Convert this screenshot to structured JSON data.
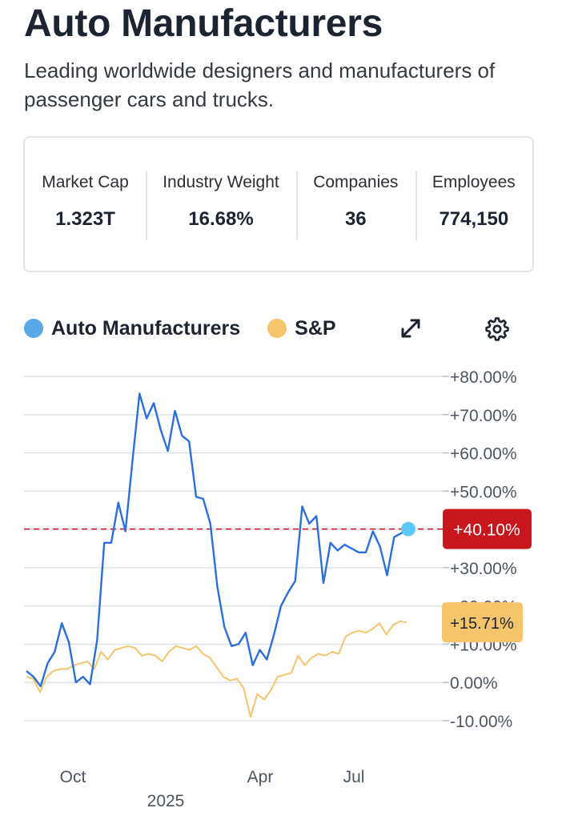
{
  "header": {
    "title": "Auto Manufacturers",
    "subtitle": "Leading worldwide designers and manufacturers of passenger cars and trucks."
  },
  "stats": [
    {
      "label": "Market Cap",
      "value": "1.323T"
    },
    {
      "label": "Industry Weight",
      "value": "16.68%"
    },
    {
      "label": "Companies",
      "value": "36"
    },
    {
      "label": "Employees",
      "value": "774,150"
    }
  ],
  "legend": [
    {
      "label": "Auto Manufacturers",
      "color": "#5aa9e6"
    },
    {
      "label": "S&P",
      "color": "#f5c46b"
    }
  ],
  "icons": {
    "expand": "expand-arrows-icon",
    "settings": "gear-icon"
  },
  "chart_data": {
    "type": "line",
    "title": "",
    "ylim": [
      -10,
      80
    ],
    "y_ticks": [
      "+80.00%",
      "+70.00%",
      "+60.00%",
      "+50.00%",
      "+30.00%",
      "+20.00%",
      "+10.00%",
      "0.00%",
      "-10.00%"
    ],
    "x_tick_labels": [
      "Oct",
      "Apr",
      "Jul"
    ],
    "year_label": "2025",
    "grid": true,
    "series": [
      {
        "name": "Auto Manufacturers",
        "color": "#2a6fdc",
        "marker_color": "#5ac8fa",
        "last_label": "+40.10%",
        "label_color": "#c8161d",
        "reference_line": 40.1,
        "values": [
          3,
          1.5,
          -1,
          5,
          8,
          15.5,
          10.5,
          0,
          1.5,
          -0.5,
          11,
          36.5,
          36.5,
          47,
          39.5,
          58,
          75.5,
          69,
          73,
          66,
          60.5,
          71,
          64.5,
          63,
          48.5,
          48,
          41.5,
          25,
          14.5,
          9.5,
          10,
          13,
          4.5,
          8.5,
          6,
          12.5,
          20,
          23.5,
          26.5,
          46,
          41.5,
          43.5,
          26,
          36.5,
          34.5,
          36,
          35,
          34,
          34,
          39.5,
          35.5,
          28,
          38,
          39,
          40.1
        ]
      },
      {
        "name": "S&P",
        "color": "#f5c46b",
        "last_label": "+15.71%",
        "label_color": "#f5c46b",
        "values": [
          1.5,
          1,
          -2.5,
          1.5,
          3,
          3.5,
          3.5,
          4.5,
          5,
          5.5,
          3.5,
          8,
          6,
          8.5,
          9,
          9.5,
          9,
          7,
          7.5,
          7,
          5.5,
          8,
          9.5,
          9,
          8.5,
          9.5,
          7.5,
          6.5,
          4,
          1.5,
          0.5,
          1,
          -1.5,
          -9,
          -3,
          -4.5,
          -2,
          1.5,
          2,
          2.5,
          7,
          4.5,
          6.5,
          7.5,
          7,
          8,
          7.5,
          12,
          13,
          13.5,
          13,
          14,
          15.5,
          12.5,
          15,
          16,
          15.71
        ]
      }
    ]
  }
}
